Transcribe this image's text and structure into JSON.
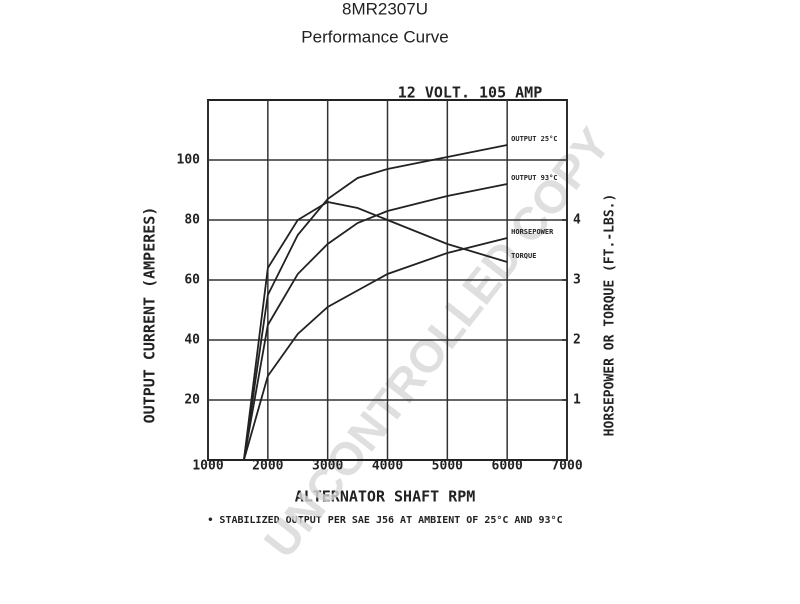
{
  "title": "8MR2307U",
  "subtitle": "Performance Curve",
  "chart_data": {
    "type": "line",
    "title": "12 VOLT. 105 AMP",
    "x_label": "ALTERNATOR SHAFT RPM",
    "y_label": "OUTPUT CURRENT (AMPERES)",
    "y2_label": "HORSEPOWER OR TORQUE (FT.-LBS.)",
    "footnote": "• STABILIZED OUTPUT PER SAE J56 AT AMBIENT OF 25°C AND 93°C",
    "xlim": [
      1000,
      7000
    ],
    "xticks": [
      1000,
      2000,
      3000,
      4000,
      5000,
      6000,
      7000
    ],
    "ylim": [
      0,
      120
    ],
    "yticks": [
      20,
      40,
      60,
      80,
      100
    ],
    "y2lim": [
      0,
      6
    ],
    "y2ticks": [
      1,
      2,
      3,
      4
    ],
    "grid": true,
    "series": [
      {
        "name": "OUTPUT 25°C",
        "color": "#222222",
        "x": [
          1600,
          2000,
          2500,
          3000,
          3500,
          4000,
          5000,
          6000
        ],
        "values": [
          0,
          55,
          75,
          87,
          94,
          97,
          101,
          105
        ]
      },
      {
        "name": "OUTPUT 93°C",
        "color": "#222222",
        "x": [
          1600,
          2000,
          2500,
          3000,
          3500,
          4000,
          5000,
          6000
        ],
        "values": [
          0,
          45,
          62,
          72,
          79,
          83,
          88,
          92
        ]
      },
      {
        "name": "HORSEPOWER",
        "color": "#222222",
        "axis": "y2",
        "x": [
          1600,
          2000,
          2500,
          3000,
          4000,
          5000,
          6000
        ],
        "values": [
          0,
          1.4,
          2.1,
          2.55,
          3.1,
          3.45,
          3.7
        ]
      },
      {
        "name": "TORQUE",
        "color": "#222222",
        "axis": "y2",
        "x": [
          1600,
          2000,
          2500,
          3000,
          3500,
          4000,
          5000,
          6000
        ],
        "values": [
          0,
          3.2,
          4.0,
          4.3,
          4.2,
          4.0,
          3.6,
          3.3
        ]
      }
    ]
  },
  "watermark": "UNCONTROLLED COPY"
}
